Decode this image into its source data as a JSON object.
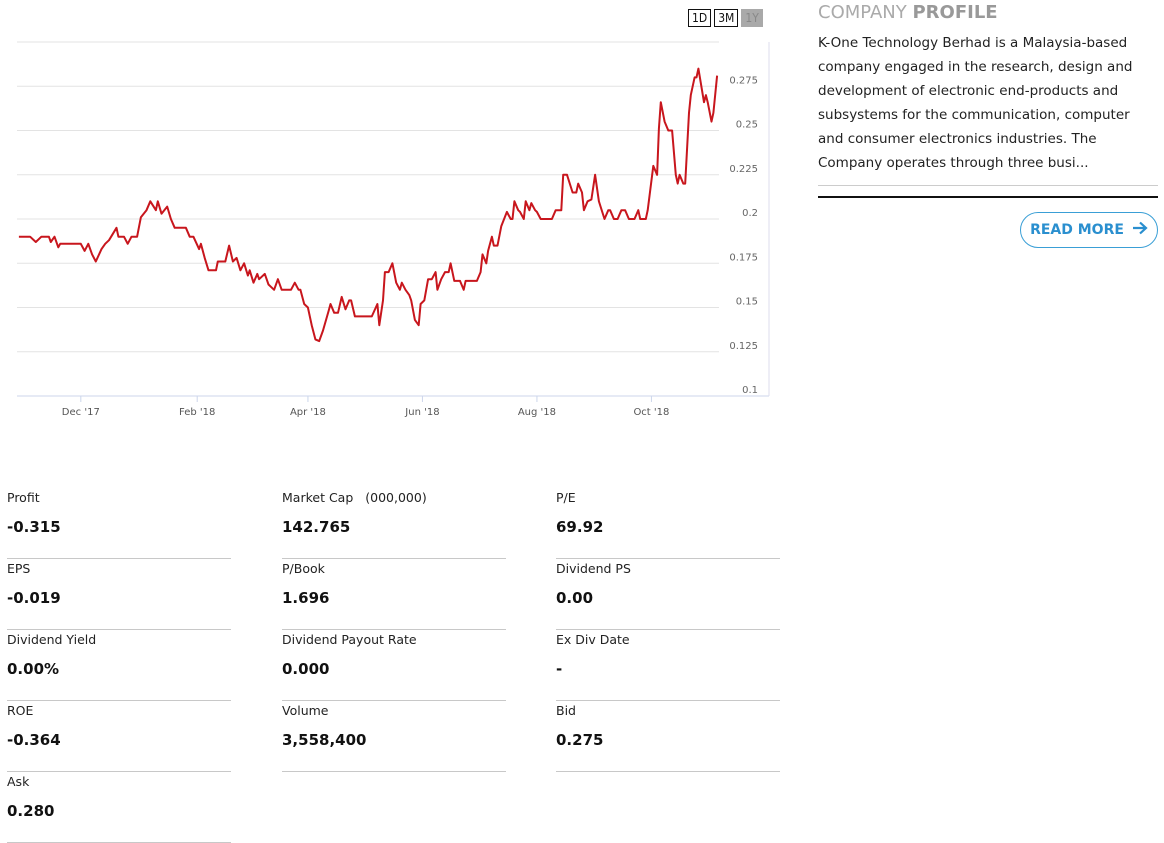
{
  "range_buttons": [
    {
      "label": "1D"
    },
    {
      "label": "3M"
    },
    {
      "label": "1Y",
      "active": true
    }
  ],
  "colors": {
    "line": "#c8161d",
    "accent": "#2a8fcf",
    "grid": "#e0e0e0"
  },
  "chart_data": {
    "type": "line",
    "title": "",
    "xlabel": "",
    "ylabel": "",
    "x_unit": "days since 1 Dec 2017",
    "xlim": [
      -34,
      340
    ],
    "ylim": [
      0.1,
      0.3
    ],
    "grid": true,
    "y_ticks": [
      0.1,
      0.125,
      0.15,
      0.175,
      0.2,
      0.225,
      0.25,
      0.275
    ],
    "y_tick_labels": [
      "0.1",
      "0.125",
      "0.15",
      "0.175",
      "0.2",
      "0.225",
      "0.25",
      "0.275"
    ],
    "x_ticks": [
      0,
      62,
      121,
      182,
      243,
      304
    ],
    "x_tick_labels": [
      "Dec '17",
      "Feb '18",
      "Apr '18",
      "Jun '18",
      "Aug '18",
      "Oct '18"
    ],
    "series": [
      {
        "name": "Price",
        "points": [
          [
            -33,
            0.19
          ],
          [
            -27,
            0.19
          ],
          [
            -24,
            0.187
          ],
          [
            -21,
            0.19
          ],
          [
            -17,
            0.19
          ],
          [
            -16,
            0.187
          ],
          [
            -14,
            0.19
          ],
          [
            -12,
            0.184
          ],
          [
            -11,
            0.186
          ],
          [
            0,
            0.186
          ],
          [
            2,
            0.182
          ],
          [
            4,
            0.186
          ],
          [
            6,
            0.18
          ],
          [
            8,
            0.176
          ],
          [
            11,
            0.183
          ],
          [
            13,
            0.186
          ],
          [
            15,
            0.188
          ],
          [
            19,
            0.195
          ],
          [
            20,
            0.19
          ],
          [
            23,
            0.19
          ],
          [
            25,
            0.186
          ],
          [
            27,
            0.19
          ],
          [
            30,
            0.19
          ],
          [
            32,
            0.201
          ],
          [
            35,
            0.205
          ],
          [
            37,
            0.21
          ],
          [
            40,
            0.205
          ],
          [
            41,
            0.21
          ],
          [
            43,
            0.203
          ],
          [
            46,
            0.207
          ],
          [
            48,
            0.2
          ],
          [
            50,
            0.195
          ],
          [
            56,
            0.195
          ],
          [
            58,
            0.19
          ],
          [
            60,
            0.19
          ],
          [
            63,
            0.183
          ],
          [
            64,
            0.186
          ],
          [
            66,
            0.178
          ],
          [
            68,
            0.171
          ],
          [
            72,
            0.171
          ],
          [
            73,
            0.176
          ],
          [
            77,
            0.176
          ],
          [
            79,
            0.185
          ],
          [
            81,
            0.176
          ],
          [
            83,
            0.178
          ],
          [
            85,
            0.171
          ],
          [
            87,
            0.175
          ],
          [
            89,
            0.168
          ],
          [
            90,
            0.171
          ],
          [
            92,
            0.164
          ],
          [
            94,
            0.169
          ],
          [
            95,
            0.166
          ],
          [
            98,
            0.169
          ],
          [
            100,
            0.163
          ],
          [
            101,
            0.162
          ],
          [
            103,
            0.16
          ],
          [
            105,
            0.166
          ],
          [
            107,
            0.16
          ],
          [
            112,
            0.16
          ],
          [
            114,
            0.164
          ],
          [
            116,
            0.16
          ],
          [
            117,
            0.16
          ],
          [
            119,
            0.152
          ],
          [
            121,
            0.15
          ],
          [
            123,
            0.14
          ],
          [
            125,
            0.132
          ],
          [
            127,
            0.131
          ],
          [
            129,
            0.137
          ],
          [
            132,
            0.148
          ],
          [
            133,
            0.152
          ],
          [
            135,
            0.147
          ],
          [
            137,
            0.147
          ],
          [
            139,
            0.156
          ],
          [
            141,
            0.149
          ],
          [
            143,
            0.154
          ],
          [
            144,
            0.154
          ],
          [
            146,
            0.145
          ],
          [
            155,
            0.145
          ],
          [
            158,
            0.152
          ],
          [
            159,
            0.14
          ],
          [
            161,
            0.154
          ],
          [
            162,
            0.17
          ],
          [
            164,
            0.17
          ],
          [
            166,
            0.175
          ],
          [
            168,
            0.164
          ],
          [
            170,
            0.16
          ],
          [
            171,
            0.164
          ],
          [
            173,
            0.16
          ],
          [
            175,
            0.157
          ],
          [
            176,
            0.154
          ],
          [
            178,
            0.143
          ],
          [
            180,
            0.14
          ],
          [
            181,
            0.152
          ],
          [
            183,
            0.154
          ],
          [
            185,
            0.166
          ],
          [
            187,
            0.166
          ],
          [
            189,
            0.17
          ],
          [
            190,
            0.16
          ],
          [
            192,
            0.166
          ],
          [
            194,
            0.17
          ],
          [
            196,
            0.17
          ],
          [
            197,
            0.175
          ],
          [
            199,
            0.165
          ],
          [
            202,
            0.165
          ],
          [
            204,
            0.16
          ],
          [
            205,
            0.165
          ],
          [
            211,
            0.165
          ],
          [
            213,
            0.17
          ],
          [
            214,
            0.18
          ],
          [
            216,
            0.175
          ],
          [
            217,
            0.182
          ],
          [
            219,
            0.19
          ],
          [
            220,
            0.185
          ],
          [
            222,
            0.185
          ],
          [
            224,
            0.196
          ],
          [
            227,
            0.204
          ],
          [
            229,
            0.2
          ],
          [
            230,
            0.2
          ],
          [
            231,
            0.21
          ],
          [
            233,
            0.205
          ],
          [
            234,
            0.204
          ],
          [
            236,
            0.2
          ],
          [
            237,
            0.21
          ],
          [
            239,
            0.205
          ],
          [
            240,
            0.209
          ],
          [
            242,
            0.205
          ],
          [
            243,
            0.204
          ],
          [
            245,
            0.2
          ],
          [
            251,
            0.2
          ],
          [
            253,
            0.205
          ],
          [
            256,
            0.205
          ],
          [
            257,
            0.225
          ],
          [
            259,
            0.225
          ],
          [
            262,
            0.215
          ],
          [
            264,
            0.215
          ],
          [
            265,
            0.22
          ],
          [
            267,
            0.215
          ],
          [
            268,
            0.205
          ],
          [
            270,
            0.21
          ],
          [
            272,
            0.211
          ],
          [
            274,
            0.225
          ],
          [
            276,
            0.21
          ],
          [
            279,
            0.2
          ],
          [
            281,
            0.205
          ],
          [
            282,
            0.205
          ],
          [
            284,
            0.2
          ],
          [
            286,
            0.2
          ],
          [
            288,
            0.205
          ],
          [
            290,
            0.205
          ],
          [
            292,
            0.2
          ],
          [
            295,
            0.2
          ],
          [
            297,
            0.205
          ],
          [
            298,
            0.2
          ],
          [
            301,
            0.2
          ],
          [
            302,
            0.205
          ],
          [
            305,
            0.23
          ],
          [
            307,
            0.225
          ],
          [
            308,
            0.251
          ],
          [
            309,
            0.266
          ],
          [
            311,
            0.255
          ],
          [
            313,
            0.25
          ],
          [
            315,
            0.25
          ],
          [
            317,
            0.225
          ],
          [
            318,
            0.22
          ],
          [
            319,
            0.225
          ],
          [
            321,
            0.22
          ],
          [
            322,
            0.22
          ],
          [
            324,
            0.26
          ],
          [
            325,
            0.27
          ],
          [
            327,
            0.28
          ],
          [
            328,
            0.28
          ],
          [
            329,
            0.285
          ],
          [
            332,
            0.266
          ],
          [
            333,
            0.27
          ],
          [
            334,
            0.266
          ],
          [
            336,
            0.255
          ],
          [
            337,
            0.26
          ],
          [
            339,
            0.281
          ]
        ]
      }
    ]
  },
  "profile": {
    "title_light": "COMPANY ",
    "title_bold": "PROFILE",
    "description": "K-One Technology Berhad is a Malaysia-based company engaged in the research, design and development of electronic end-products and subsystems for the communication, computer and consumer electronics industries. The Company operates through three busi...",
    "read_more": "READ MORE",
    "read_more_icon": "arrow-right-icon"
  },
  "stats": [
    {
      "label": "Profit",
      "value": "-0.315"
    },
    {
      "label": "Market Cap",
      "sub": "(000,000)",
      "value": "142.765"
    },
    {
      "label": "P/E",
      "value": "69.92"
    },
    {
      "label": "EPS",
      "value": "-0.019"
    },
    {
      "label": "P/Book",
      "value": "1.696"
    },
    {
      "label": "Dividend PS",
      "value": "0.00"
    },
    {
      "label": "Dividend Yield",
      "value": "0.00%"
    },
    {
      "label": "Dividend Payout Rate",
      "value": "0.000"
    },
    {
      "label": "Ex Div Date",
      "value": "-"
    },
    {
      "label": "ROE",
      "value": "-0.364"
    },
    {
      "label": "Volume",
      "value": "3,558,400"
    },
    {
      "label": "Bid",
      "value": "0.275"
    },
    {
      "label": "Ask",
      "value": "0.280"
    }
  ]
}
